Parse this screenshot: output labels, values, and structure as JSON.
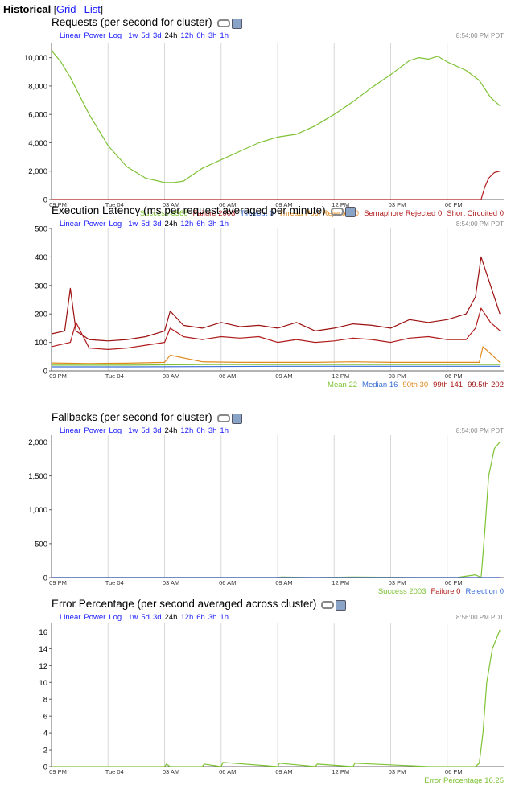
{
  "header": {
    "title": "Historical",
    "grid": "Grid",
    "sep": "|",
    "list": "List"
  },
  "range_bar": {
    "scales": [
      "Linear",
      "Power",
      "Log"
    ],
    "ranges": [
      "1w",
      "5d",
      "3d",
      "24h",
      "12h",
      "6h",
      "3h",
      "1h"
    ],
    "selected": "24h"
  },
  "icon_names": [
    "link-icon",
    "image-icon"
  ],
  "colors": {
    "green": "#7ec234",
    "red": "#b01b1b",
    "blue": "#3b6fd6",
    "orange": "#e08a1e",
    "darkred": "#9c1010",
    "grid": "#d8d8d8"
  },
  "chart_data": [
    {
      "type": "line",
      "title": "Requests (per second for cluster)",
      "timestamp": "8:54:00 PM PDT",
      "xticks": [
        "09 PM",
        "Tue 04",
        "03 AM",
        "06 AM",
        "09 AM",
        "12 PM",
        "03 PM",
        "06 PM"
      ],
      "ylim": [
        0,
        11000
      ],
      "yticks": [
        0,
        2000,
        4000,
        6000,
        8000,
        10000
      ],
      "ytick_labels": [
        "0",
        "2,000",
        "4,000",
        "6,000",
        "8,000",
        "10,000"
      ],
      "legend": [
        {
          "label": "Success",
          "value": "6566",
          "color": "#7ec234"
        },
        {
          "label": "Failure",
          "value": "2003",
          "color": "#b01b1b"
        },
        {
          "label": "Timeout",
          "value": "0",
          "color": "#3b6fd6"
        },
        {
          "label": "Thread Pool Rejected",
          "value": "0",
          "color": "#e08a1e"
        },
        {
          "label": "Semaphore Rejected",
          "value": "0",
          "color": "#b01b1b"
        },
        {
          "label": "Short Circuited",
          "value": "0",
          "color": "#b01b1b"
        }
      ],
      "series": [
        {
          "name": "Success",
          "color": "#7ec234",
          "x": [
            0,
            0.5,
            1,
            2,
            3,
            4,
            5,
            6,
            6.5,
            7,
            8,
            9,
            10,
            11,
            12,
            13,
            14,
            15,
            16,
            17,
            18,
            19,
            19.5,
            20,
            20.5,
            21,
            22,
            22.7,
            23.3,
            23.8
          ],
          "y": [
            10500,
            9700,
            8600,
            6000,
            3800,
            2300,
            1500,
            1200,
            1200,
            1300,
            2200,
            2800,
            3400,
            4000,
            4400,
            4600,
            5200,
            6000,
            6900,
            7900,
            8800,
            9800,
            10000,
            9900,
            10100,
            9700,
            9100,
            8400,
            7200,
            6600
          ]
        },
        {
          "name": "Failure",
          "color": "#b01b1b",
          "x": [
            0,
            21,
            22,
            22.8,
            23,
            23.2,
            23.5,
            23.8
          ],
          "y": [
            0,
            0,
            0,
            0,
            900,
            1500,
            1900,
            2000
          ]
        }
      ]
    },
    {
      "type": "line",
      "title": "Execution Latency (ms per request averaged per minute)",
      "timestamp": "8:54:00 PM PDT",
      "xticks": [
        "09 PM",
        "Tue 04",
        "03 AM",
        "06 AM",
        "09 AM",
        "12 PM",
        "03 PM",
        "06 PM"
      ],
      "ylim": [
        0,
        500
      ],
      "yticks": [
        0,
        100,
        200,
        300,
        400,
        500
      ],
      "ytick_labels": [
        "0",
        "100",
        "200",
        "300",
        "400",
        "500"
      ],
      "legend": [
        {
          "label": "Mean",
          "value": "22",
          "color": "#7ec234"
        },
        {
          "label": "Median",
          "value": "16",
          "color": "#3b6fd6"
        },
        {
          "label": "90th",
          "value": "30",
          "color": "#e08a1e"
        },
        {
          "label": "99th",
          "value": "141",
          "color": "#b01b1b"
        },
        {
          "label": "99.5th",
          "value": "202",
          "color": "#9c1010"
        }
      ],
      "series": [
        {
          "name": "99.5th",
          "color": "#9c1010",
          "x": [
            0,
            0.7,
            1,
            1.3,
            2,
            3,
            4,
            5,
            6,
            6.3,
            7,
            8,
            9,
            10,
            11,
            12,
            13,
            14,
            15,
            16,
            17,
            18,
            19,
            20,
            21,
            22,
            22.5,
            22.8,
            23.3,
            23.8
          ],
          "y": [
            130,
            140,
            290,
            140,
            110,
            105,
            110,
            120,
            140,
            210,
            160,
            150,
            170,
            155,
            160,
            150,
            170,
            140,
            150,
            165,
            160,
            150,
            180,
            170,
            180,
            200,
            260,
            400,
            300,
            200
          ]
        },
        {
          "name": "99th",
          "color": "#b01b1b",
          "x": [
            0,
            1,
            1.3,
            2,
            3,
            4,
            5,
            6,
            6.3,
            7,
            8,
            9,
            10,
            11,
            12,
            13,
            14,
            15,
            16,
            17,
            18,
            19,
            20,
            21,
            22,
            22.5,
            22.8,
            23.3,
            23.8
          ],
          "y": [
            85,
            100,
            170,
            80,
            75,
            80,
            90,
            100,
            150,
            120,
            110,
            120,
            115,
            120,
            100,
            110,
            100,
            105,
            115,
            110,
            100,
            115,
            120,
            110,
            110,
            150,
            220,
            170,
            141
          ]
        },
        {
          "name": "90th",
          "color": "#e08a1e",
          "x": [
            0,
            2,
            4,
            6,
            6.3,
            8,
            10,
            12,
            14,
            16,
            18,
            20,
            22,
            22.7,
            22.9,
            23.8
          ],
          "y": [
            28,
            26,
            27,
            30,
            55,
            32,
            30,
            30,
            30,
            32,
            30,
            30,
            30,
            30,
            85,
            30
          ]
        },
        {
          "name": "Mean",
          "color": "#7ec234",
          "x": [
            0,
            4,
            8,
            12,
            16,
            20,
            23.8
          ],
          "y": [
            20,
            20,
            22,
            22,
            22,
            22,
            22
          ]
        },
        {
          "name": "Median",
          "color": "#3b6fd6",
          "x": [
            0,
            4,
            8,
            12,
            16,
            20,
            23.8
          ],
          "y": [
            14,
            14,
            15,
            16,
            16,
            16,
            16
          ]
        }
      ]
    },
    {
      "type": "line",
      "title": "Fallbacks (per second for cluster)",
      "timestamp": "8:54:00 PM PDT",
      "xticks": [
        "09 PM",
        "Tue 04",
        "03 AM",
        "06 AM",
        "09 AM",
        "12 PM",
        "03 PM",
        "06 PM"
      ],
      "ylim": [
        0,
        2100
      ],
      "yticks": [
        0,
        500,
        1000,
        1500,
        2000
      ],
      "ytick_labels": [
        "0",
        "500",
        "1,000",
        "1,500",
        "2,000"
      ],
      "legend": [
        {
          "label": "Success",
          "value": "2003",
          "color": "#7ec234"
        },
        {
          "label": "Failure",
          "value": "0",
          "color": "#b01b1b"
        },
        {
          "label": "Rejection",
          "value": "0",
          "color": "#3b6fd6"
        }
      ],
      "series": [
        {
          "name": "Success",
          "color": "#7ec234",
          "x": [
            0,
            12,
            12.2,
            14,
            16,
            20,
            21.5,
            22.5,
            22.8,
            23.0,
            23.2,
            23.5,
            23.8
          ],
          "y": [
            0,
            0,
            8,
            0,
            8,
            0,
            0,
            40,
            0,
            700,
            1500,
            1900,
            2000
          ]
        },
        {
          "name": "Failure",
          "color": "#b01b1b",
          "x": [
            0,
            23.8
          ],
          "y": [
            0,
            0
          ]
        },
        {
          "name": "Rejection",
          "color": "#3b6fd6",
          "x": [
            0,
            23.8
          ],
          "y": [
            0,
            0
          ]
        }
      ]
    },
    {
      "type": "line",
      "title": "Error Percentage (per second averaged across cluster)",
      "timestamp": "8:56:00 PM PDT",
      "xticks": [
        "09 PM",
        "Tue 04",
        "03 AM",
        "06 AM",
        "09 AM",
        "12 PM",
        "03 PM",
        "06 PM"
      ],
      "ylim": [
        0,
        17
      ],
      "yticks": [
        0,
        2,
        4,
        6,
        8,
        10,
        12,
        14,
        16
      ],
      "ytick_labels": [
        "0",
        "2",
        "4",
        "6",
        "8",
        "10",
        "12",
        "14",
        "16"
      ],
      "legend": [
        {
          "label": "Error Percentage",
          "value": "16.25",
          "color": "#7ec234"
        }
      ],
      "series": [
        {
          "name": "Error Percentage",
          "color": "#7ec234",
          "x": [
            0,
            6,
            6.1,
            6.3,
            8,
            8.1,
            9,
            9.1,
            12,
            12.1,
            14,
            14.1,
            16,
            16.1,
            20,
            22.5,
            22.7,
            22.9,
            23.1,
            23.4,
            23.8
          ],
          "y": [
            0,
            0,
            0.3,
            0,
            0,
            0.3,
            0,
            0.5,
            0,
            0.4,
            0,
            0.3,
            0,
            0.4,
            0,
            0,
            0.4,
            4,
            10,
            14,
            16.25
          ]
        }
      ]
    }
  ]
}
